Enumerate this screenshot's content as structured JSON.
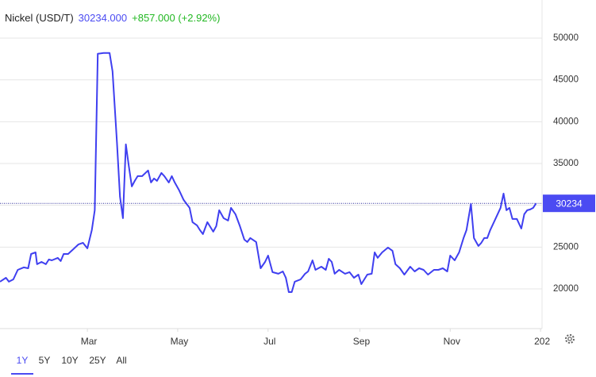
{
  "chart_data": {
    "type": "line",
    "title": "Nickel (USD/T)",
    "price": "30234.000",
    "change": "+857.000 (+2.92%)",
    "current_value": 30234,
    "color": "#3f3ff0",
    "price_color": "#4b4bf2",
    "change_color": "#22b822",
    "x": [
      0,
      4,
      6,
      9,
      12,
      16,
      19,
      21,
      24,
      25,
      28,
      31,
      33,
      35,
      39,
      41,
      43,
      46,
      49,
      53,
      56,
      59,
      62,
      64,
      66,
      70,
      74,
      76,
      79,
      81,
      83,
      85,
      87,
      89,
      91,
      93,
      96,
      100,
      102,
      104,
      106,
      109,
      111,
      114,
      116,
      118,
      121,
      124,
      128,
      130,
      133,
      135,
      137,
      140,
      144,
      146,
      148,
      151,
      154,
      156,
      159,
      162,
      165,
      167,
      169,
      173,
      176,
      179,
      181,
      184,
      188,
      191,
      193,
      195,
      197,
      199,
      203,
      206,
      208,
      211,
      213,
      217,
      220,
      222,
      224,
      226,
      229,
      233,
      236,
      239,
      242,
      244,
      248,
      251,
      253,
      255,
      258,
      262,
      265,
      267,
      270,
      273,
      277,
      280,
      283,
      286,
      289,
      293,
      296,
      299,
      302,
      304,
      307,
      310,
      313,
      315,
      318,
      320,
      323,
      325,
      327,
      329,
      331,
      334,
      338,
      340,
      342,
      344,
      346,
      349,
      352,
      354,
      356,
      358,
      360,
      362
    ],
    "values": [
      20860,
      21330,
      20860,
      21140,
      22280,
      22570,
      22470,
      24180,
      24370,
      22950,
      23230,
      22950,
      23520,
      23420,
      23710,
      23330,
      24180,
      24180,
      24660,
      25320,
      25510,
      24850,
      27030,
      29410,
      48120,
      48220,
      48220,
      46030,
      37480,
      31020,
      28460,
      37290,
      34630,
      32260,
      32920,
      33490,
      33490,
      34160,
      32730,
      33210,
      32920,
      33870,
      33490,
      32730,
      33490,
      32730,
      31780,
      30640,
      29690,
      27980,
      27600,
      27030,
      26560,
      27980,
      26840,
      27510,
      29410,
      28460,
      28170,
      29690,
      28930,
      27510,
      25890,
      25610,
      26080,
      25610,
      22470,
      23230,
      23990,
      22000,
      21810,
      22090,
      21330,
      19620,
      19620,
      20860,
      21140,
      21810,
      22090,
      23420,
      22280,
      22660,
      22280,
      23610,
      23230,
      21810,
      22280,
      21810,
      22000,
      21330,
      21710,
      20570,
      21710,
      21810,
      24370,
      23710,
      24370,
      24940,
      24560,
      22950,
      22470,
      21710,
      22660,
      22090,
      22470,
      22280,
      21710,
      22280,
      22280,
      22470,
      22090,
      23990,
      23420,
      24370,
      26080,
      27030,
      30170,
      26080,
      25130,
      25510,
      26080,
      26080,
      27030,
      28170,
      29690,
      31400,
      29410,
      29690,
      28360,
      28360,
      27220,
      28930,
      29410,
      29500,
      29690,
      30234
    ],
    "xlim": [
      0,
      366
    ],
    "xticks": [
      {
        "value": 59,
        "label": "Mar"
      },
      {
        "value": 120,
        "label": "May"
      },
      {
        "value": 181,
        "label": "Jul"
      },
      {
        "value": 243,
        "label": "Sep"
      },
      {
        "value": 304,
        "label": "Nov"
      },
      {
        "value": 365,
        "label": "202"
      }
    ],
    "ylim": [
      15250,
      54370
    ],
    "yticks": [
      20000,
      25000,
      30000,
      35000,
      40000,
      45000,
      50000
    ],
    "grid": true,
    "ranges": [
      "1Y",
      "5Y",
      "10Y",
      "25Y",
      "All"
    ],
    "selected_range": 0
  }
}
